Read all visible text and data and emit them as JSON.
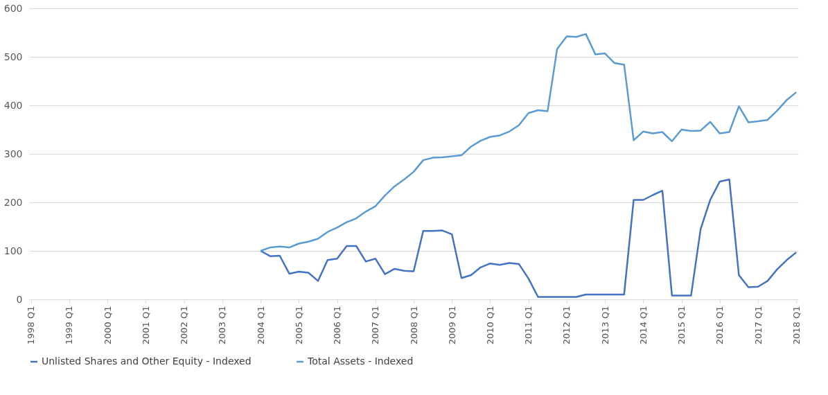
{
  "chart_data": {
    "type": "line",
    "categories": [
      "1998 Q1",
      null,
      null,
      null,
      "1999 Q1",
      null,
      null,
      null,
      "2000 Q1",
      null,
      null,
      null,
      "2001 Q1",
      null,
      null,
      null,
      "2002 Q1",
      null,
      null,
      null,
      "2003 Q1",
      null,
      null,
      null,
      "2004 Q1",
      null,
      null,
      null,
      "2005 Q1",
      null,
      null,
      null,
      "2006 Q1",
      null,
      null,
      null,
      "2007 Q1",
      null,
      null,
      null,
      "2008 Q1",
      null,
      null,
      null,
      "2009 Q1",
      null,
      null,
      null,
      "2010 Q1",
      null,
      null,
      null,
      "2011 Q1",
      null,
      null,
      null,
      "2012 Q1",
      null,
      null,
      null,
      "2013 Q1",
      null,
      null,
      null,
      "2014 Q1",
      null,
      null,
      null,
      "2015 Q1",
      null,
      null,
      null,
      "2016 Q1",
      null,
      null,
      null,
      "2017 Q1",
      null,
      null,
      null,
      "2018 Q1"
    ],
    "series": [
      {
        "name": "Unlisted Shares and Other Equity - Indexed",
        "color": "#4472c4",
        "values": [
          null,
          null,
          null,
          null,
          null,
          null,
          null,
          null,
          null,
          null,
          null,
          null,
          null,
          null,
          null,
          null,
          null,
          null,
          null,
          null,
          null,
          null,
          null,
          null,
          100,
          89,
          90,
          53,
          57,
          55,
          38,
          81,
          84,
          110,
          110,
          78,
          84,
          52,
          63,
          59,
          58,
          141,
          141,
          142,
          134,
          44,
          50,
          66,
          74,
          71,
          75,
          73,
          43,
          5,
          5,
          5,
          5,
          5,
          10,
          10,
          10,
          10,
          10,
          205,
          205,
          215,
          224,
          8,
          8,
          8,
          145,
          205,
          243,
          247,
          50,
          25,
          26,
          38,
          62,
          81,
          97
        ]
      },
      {
        "name": "Total Assets - Indexed",
        "color": "#5b9bd5",
        "values": [
          null,
          null,
          null,
          null,
          null,
          null,
          null,
          null,
          null,
          null,
          null,
          null,
          null,
          null,
          null,
          null,
          null,
          null,
          null,
          null,
          null,
          null,
          null,
          null,
          100,
          107,
          109,
          107,
          115,
          119,
          125,
          139,
          148,
          159,
          167,
          181,
          192,
          214,
          233,
          247,
          263,
          287,
          292,
          293,
          295,
          297,
          315,
          327,
          335,
          338,
          346,
          359,
          384,
          390,
          388,
          516,
          542,
          541,
          547,
          505,
          507,
          487,
          484,
          328,
          346,
          342,
          345,
          326,
          350,
          347,
          348,
          366,
          342,
          345,
          398,
          365,
          367,
          370,
          389,
          411,
          427
        ]
      }
    ],
    "ylim": [
      0,
      600
    ],
    "yticks": [
      0,
      100,
      200,
      300,
      400,
      500,
      600
    ],
    "grid": "y",
    "legend": "bottom",
    "marker": "none",
    "line_style": "solid"
  }
}
